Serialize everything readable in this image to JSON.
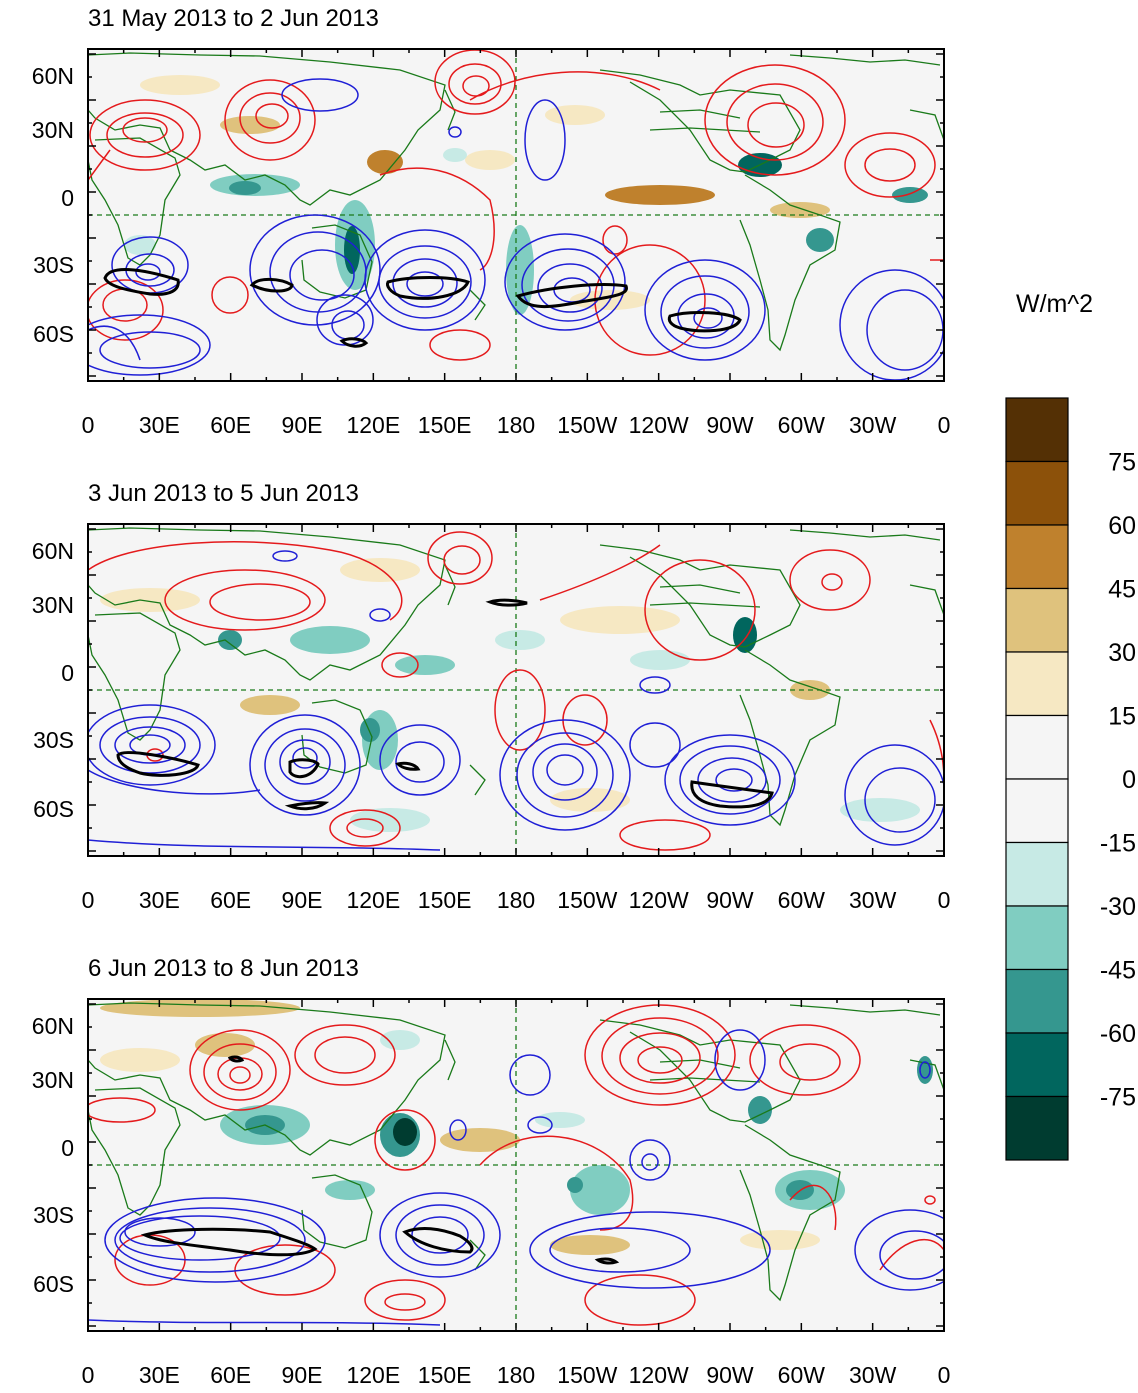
{
  "panels": [
    {
      "title": "31 May 2013 to 2 Jun 2013"
    },
    {
      "title": "3 Jun 2013 to 5 Jun 2013"
    },
    {
      "title": "6 Jun 2013 to 8 Jun 2013"
    }
  ],
  "axis": {
    "lon_labels": [
      "0",
      "30E",
      "60E",
      "90E",
      "120E",
      "150E",
      "180",
      "150W",
      "120W",
      "90W",
      "60W",
      "30W",
      "0"
    ],
    "lat_labels": [
      "60N",
      "30N",
      "0",
      "30S",
      "60S"
    ]
  },
  "colorbar": {
    "unit": "W/m^2",
    "labels": [
      "75",
      "60",
      "45",
      "30",
      "15",
      "0",
      "-15",
      "-30",
      "-45",
      "-60",
      "-75"
    ],
    "colors": [
      "#543005",
      "#8c510a",
      "#bf812d",
      "#dfc27d",
      "#f6e8c3",
      "#f5f5f5",
      "#f5f5f5",
      "#c7eae5",
      "#80cdc1",
      "#35978f",
      "#01665e",
      "#003c30"
    ]
  },
  "colors": {
    "land_outline": "#1a7a1a",
    "positive_contour": "#e41a1c",
    "negative_contour": "#1f1fd6",
    "significance_contour": "#000000"
  }
}
